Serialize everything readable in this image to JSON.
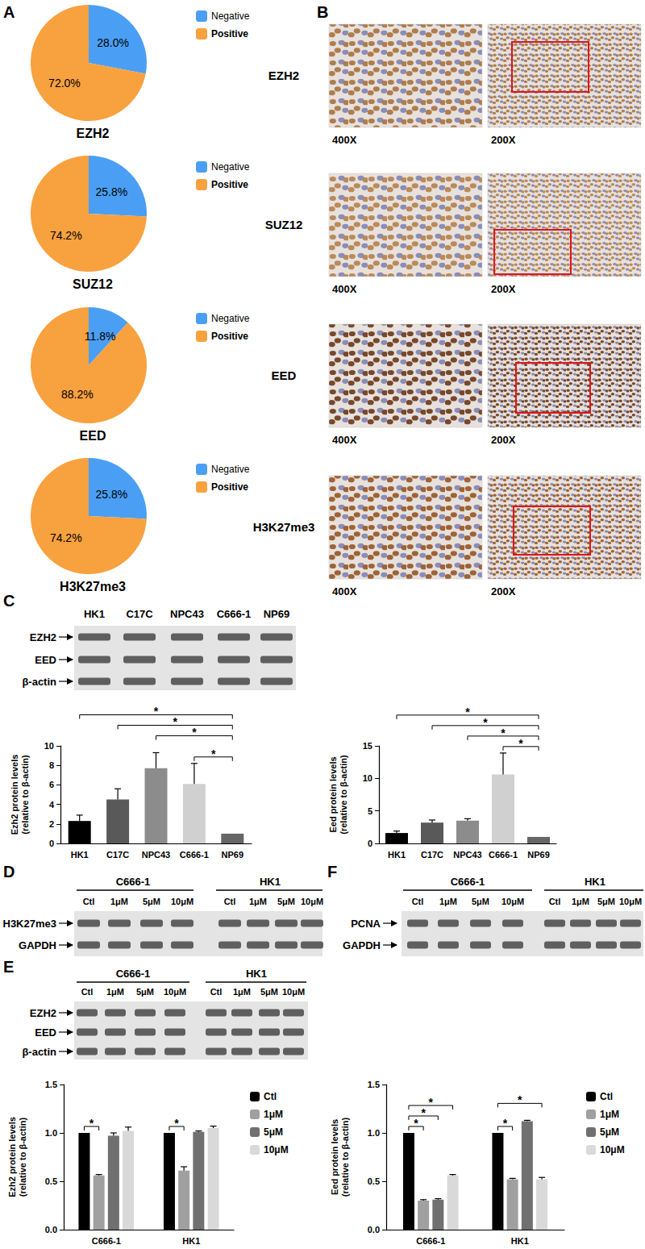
{
  "panel_labels": [
    "A",
    "B",
    "C",
    "D",
    "E",
    "F"
  ],
  "chart_data": [
    {
      "type": "pie",
      "title": "EZH2",
      "categories": [
        "Negative",
        "Positive"
      ],
      "values": [
        28.0,
        72.0
      ],
      "value_labels": [
        "28.0%",
        "72.0%"
      ],
      "colors": [
        "#4a9ff5",
        "#f8a13f"
      ],
      "legend": "right",
      "data_labels": true
    },
    {
      "type": "pie",
      "title": "SUZ12",
      "categories": [
        "Negative",
        "Positive"
      ],
      "values": [
        25.8,
        74.2
      ],
      "value_labels": [
        "25.8%",
        "74.2%"
      ],
      "colors": [
        "#4a9ff5",
        "#f8a13f"
      ],
      "legend": "right",
      "data_labels": true
    },
    {
      "type": "pie",
      "title": "EED",
      "categories": [
        "Negative",
        "Positive"
      ],
      "values": [
        11.8,
        88.2
      ],
      "value_labels": [
        "11.8%",
        "88.2%"
      ],
      "colors": [
        "#4a9ff5",
        "#f8a13f"
      ],
      "legend": "right",
      "data_labels": true
    },
    {
      "type": "pie",
      "title": "H3K27me3",
      "categories": [
        "Negative",
        "Positive"
      ],
      "values": [
        25.8,
        74.2
      ],
      "value_labels": [
        "25.8%",
        "74.2%"
      ],
      "colors": [
        "#4a9ff5",
        "#f8a13f"
      ],
      "legend": "right",
      "data_labels": true
    },
    {
      "type": "bar",
      "y_label": "Ezh2 protein levels\n(relative to β-actin)",
      "categories": [
        "HK1",
        "C17C",
        "NPC43",
        "C666-1",
        "NP69"
      ],
      "values": [
        2.3,
        4.5,
        7.7,
        6.1,
        1.0
      ],
      "errors": [
        0.6,
        1.1,
        1.6,
        2.1,
        0
      ],
      "colors": [
        "#000000",
        "#595959",
        "#8c8c8c",
        "#d0d0d0",
        "#666666"
      ],
      "ylim": [
        0,
        10
      ],
      "yticks": [
        0,
        2,
        4,
        6,
        8,
        10
      ],
      "grid": false,
      "comparisons": [
        {
          "from": "C666-1",
          "to": "NP69",
          "label": "*"
        },
        {
          "from": "NPC43",
          "to": "NP69",
          "label": "*"
        },
        {
          "from": "C17C",
          "to": "NP69",
          "label": "*"
        },
        {
          "from": "HK1",
          "to": "NP69",
          "label": "*"
        }
      ]
    },
    {
      "type": "bar",
      "y_label": "Eed protein levels\n(relative to β-actin)",
      "categories": [
        "HK1",
        "C17C",
        "NPC43",
        "C666-1",
        "NP69"
      ],
      "values": [
        1.6,
        3.2,
        3.5,
        10.6,
        1.0
      ],
      "errors": [
        0.3,
        0.4,
        0.3,
        3.3,
        0
      ],
      "colors": [
        "#000000",
        "#595959",
        "#8c8c8c",
        "#d0d0d0",
        "#666666"
      ],
      "ylim": [
        0,
        15
      ],
      "yticks": [
        0,
        5,
        10,
        15
      ],
      "grid": false,
      "comparisons": [
        {
          "from": "C666-1",
          "to": "NP69",
          "label": "*"
        },
        {
          "from": "NPC43",
          "to": "NP69",
          "label": "*"
        },
        {
          "from": "C17C",
          "to": "NP69",
          "label": "*"
        },
        {
          "from": "HK1",
          "to": "NP69",
          "label": "*"
        }
      ]
    },
    {
      "type": "bar",
      "y_label": "Ezh2 protein levels\n(relative to β-actin)",
      "categories": [
        "C666-1",
        "HK1"
      ],
      "series": [
        {
          "name": "Ctl",
          "color": "#000000",
          "values": [
            1.0,
            1.0
          ],
          "errors": [
            0,
            0
          ]
        },
        {
          "name": "1μM",
          "color": "#a0a0a0",
          "values": [
            0.56,
            0.61
          ],
          "errors": [
            0.01,
            0.04
          ]
        },
        {
          "name": "5μM",
          "color": "#707070",
          "values": [
            0.97,
            1.01
          ],
          "errors": [
            0.03,
            0.01
          ]
        },
        {
          "name": "10μM",
          "color": "#d9d9d9",
          "values": [
            1.02,
            1.05
          ],
          "errors": [
            0.04,
            0.02
          ]
        }
      ],
      "ylim": [
        0,
        1.5
      ],
      "yticks": [
        {
          "value": 0,
          "label": "0.0"
        },
        {
          "value": 0.5,
          "label": "0.5"
        },
        {
          "value": 1,
          "label": "1.0"
        },
        {
          "value": 1.5,
          "label": "1.5"
        }
      ],
      "grid": false,
      "legend": "right",
      "comparisons": [
        {
          "category": "C666-1",
          "from": "Ctl",
          "to": "1μM",
          "label": "*"
        },
        {
          "category": "HK1",
          "from": "Ctl",
          "to": "1μM",
          "label": "*"
        }
      ]
    },
    {
      "type": "bar",
      "y_label": "Eed protein levels\n(relative to β-actin)",
      "categories": [
        "C666-1",
        "HK1"
      ],
      "series": [
        {
          "name": "Ctl",
          "color": "#000000",
          "values": [
            1.0,
            1.0
          ],
          "errors": [
            0,
            0
          ]
        },
        {
          "name": "1μM",
          "color": "#a0a0a0",
          "values": [
            0.3,
            0.52
          ],
          "errors": [
            0.01,
            0.01
          ]
        },
        {
          "name": "5μM",
          "color": "#707070",
          "values": [
            0.31,
            1.12
          ],
          "errors": [
            0.01,
            0.01
          ]
        },
        {
          "name": "10μM",
          "color": "#d9d9d9",
          "values": [
            0.56,
            0.52
          ],
          "errors": [
            0.01,
            0.02
          ]
        }
      ],
      "ylim": [
        0,
        1.5
      ],
      "yticks": [
        {
          "value": 0,
          "label": "0.0"
        },
        {
          "value": 0.5,
          "label": "0.5"
        },
        {
          "value": 1,
          "label": "1.0"
        },
        {
          "value": 1.5,
          "label": "1.5"
        }
      ],
      "grid": false,
      "legend": "right",
      "comparisons": [
        {
          "category": "C666-1",
          "from": "Ctl",
          "to": "1μM",
          "label": "*"
        },
        {
          "category": "C666-1",
          "from": "Ctl",
          "to": "5μM",
          "label": "*"
        },
        {
          "category": "C666-1",
          "from": "Ctl",
          "to": "10μM",
          "label": "*"
        },
        {
          "category": "HK1",
          "from": "Ctl",
          "to": "1μM",
          "label": "*"
        },
        {
          "category": "HK1",
          "from": "Ctl",
          "to": "10μM",
          "label": "*"
        }
      ]
    }
  ],
  "ihc": {
    "rows": [
      "EZH2",
      "SUZ12",
      "EED",
      "H3K27me3"
    ],
    "magnifications": [
      "400X",
      "200X"
    ]
  },
  "blots": {
    "C": {
      "lanes": [
        "HK1",
        "C17C",
        "NPC43",
        "C666-1",
        "NP69"
      ],
      "rows": [
        "EZH2",
        "EED",
        "β-actin"
      ]
    },
    "D": {
      "groups": [
        "C666-1",
        "HK1"
      ],
      "lanes": [
        "Ctl",
        "1μM",
        "5μM",
        "10μM"
      ],
      "rows": [
        "H3K27me3",
        "GAPDH"
      ]
    },
    "E": {
      "groups": [
        "C666-1",
        "HK1"
      ],
      "lanes": [
        "Ctl",
        "1μM",
        "5μM",
        "10μM"
      ],
      "rows": [
        "EZH2",
        "EED",
        "β-actin"
      ]
    },
    "F": {
      "groups": [
        "C666-1",
        "HK1"
      ],
      "lanes": [
        "Ctl",
        "1μM",
        "5μM",
        "10μM"
      ],
      "rows": [
        "PCNA",
        "GAPDH"
      ]
    }
  }
}
